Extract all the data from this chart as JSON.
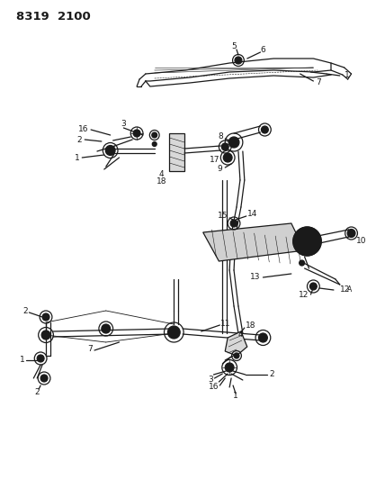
{
  "title": "8319  2100",
  "bg_color": "#ffffff",
  "line_color": "#1a1a1a",
  "label_fontsize": 6.5,
  "title_fontsize": 9.5,
  "fig_width": 4.08,
  "fig_height": 5.33,
  "dpi": 100
}
